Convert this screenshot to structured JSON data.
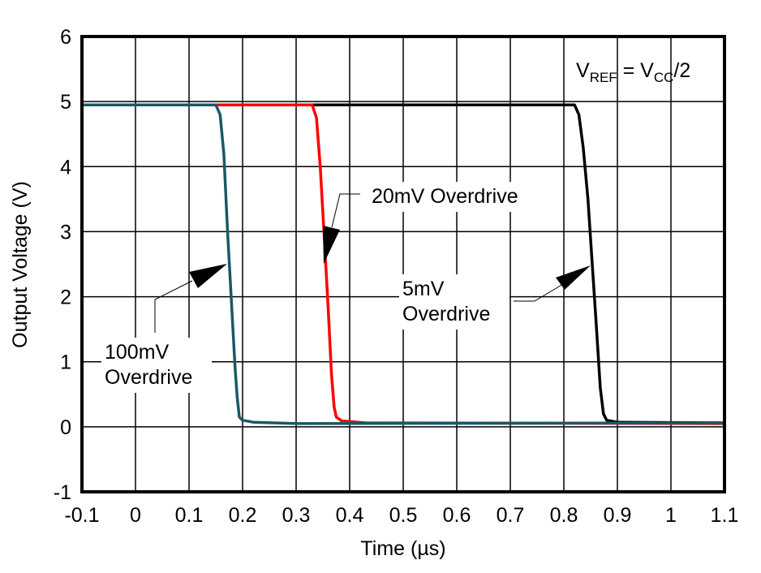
{
  "chart_data": {
    "type": "line",
    "xlabel": "Time (µs)",
    "ylabel": "Output Voltage (V)",
    "xlim": [
      -0.1,
      1.1
    ],
    "ylim": [
      -1,
      6
    ],
    "xticks": [
      "-0.1",
      "0",
      "0.1",
      "0.2",
      "0.3",
      "0.4",
      "0.5",
      "0.6",
      "0.7",
      "0.8",
      "0.9",
      "1",
      "1.1"
    ],
    "yticks": [
      "-1",
      "0",
      "1",
      "2",
      "3",
      "4",
      "5",
      "6"
    ],
    "grid": true,
    "annotation_top_right": {
      "v": "V",
      "ref": "REF",
      "eq": " = V",
      "cc": "CC",
      "tail": "/2"
    },
    "series": [
      {
        "name": "100mV Overdrive",
        "label_lines": [
          "100mV",
          "Overdrive"
        ],
        "color": "#1a5866",
        "x": [
          -0.1,
          0.15,
          0.158,
          0.165,
          0.172,
          0.18,
          0.186,
          0.19,
          0.194,
          0.2,
          0.22,
          0.3,
          1.1
        ],
        "y": [
          4.95,
          4.95,
          4.8,
          4.2,
          3.0,
          1.8,
          0.9,
          0.45,
          0.15,
          0.1,
          0.07,
          0.05,
          0.06
        ]
      },
      {
        "name": "20mV Overdrive",
        "label_lines": [
          "20mV Overdrive"
        ],
        "color": "#ff0000",
        "x": [
          -0.1,
          0.33,
          0.338,
          0.345,
          0.352,
          0.36,
          0.366,
          0.371,
          0.375,
          0.385,
          0.43,
          1.1
        ],
        "y": [
          4.95,
          4.95,
          4.75,
          4.0,
          3.0,
          1.8,
          0.8,
          0.3,
          0.15,
          0.09,
          0.06,
          0.05
        ]
      },
      {
        "name": "5mV Overdrive",
        "label_lines": [
          "5mV",
          "Overdrive"
        ],
        "color": "#000000",
        "x": [
          -0.1,
          0.82,
          0.828,
          0.836,
          0.845,
          0.853,
          0.861,
          0.868,
          0.874,
          0.88,
          0.9,
          1.1
        ],
        "y": [
          4.95,
          4.95,
          4.8,
          4.3,
          3.5,
          2.5,
          1.5,
          0.6,
          0.2,
          0.1,
          0.07,
          0.06
        ]
      }
    ]
  }
}
